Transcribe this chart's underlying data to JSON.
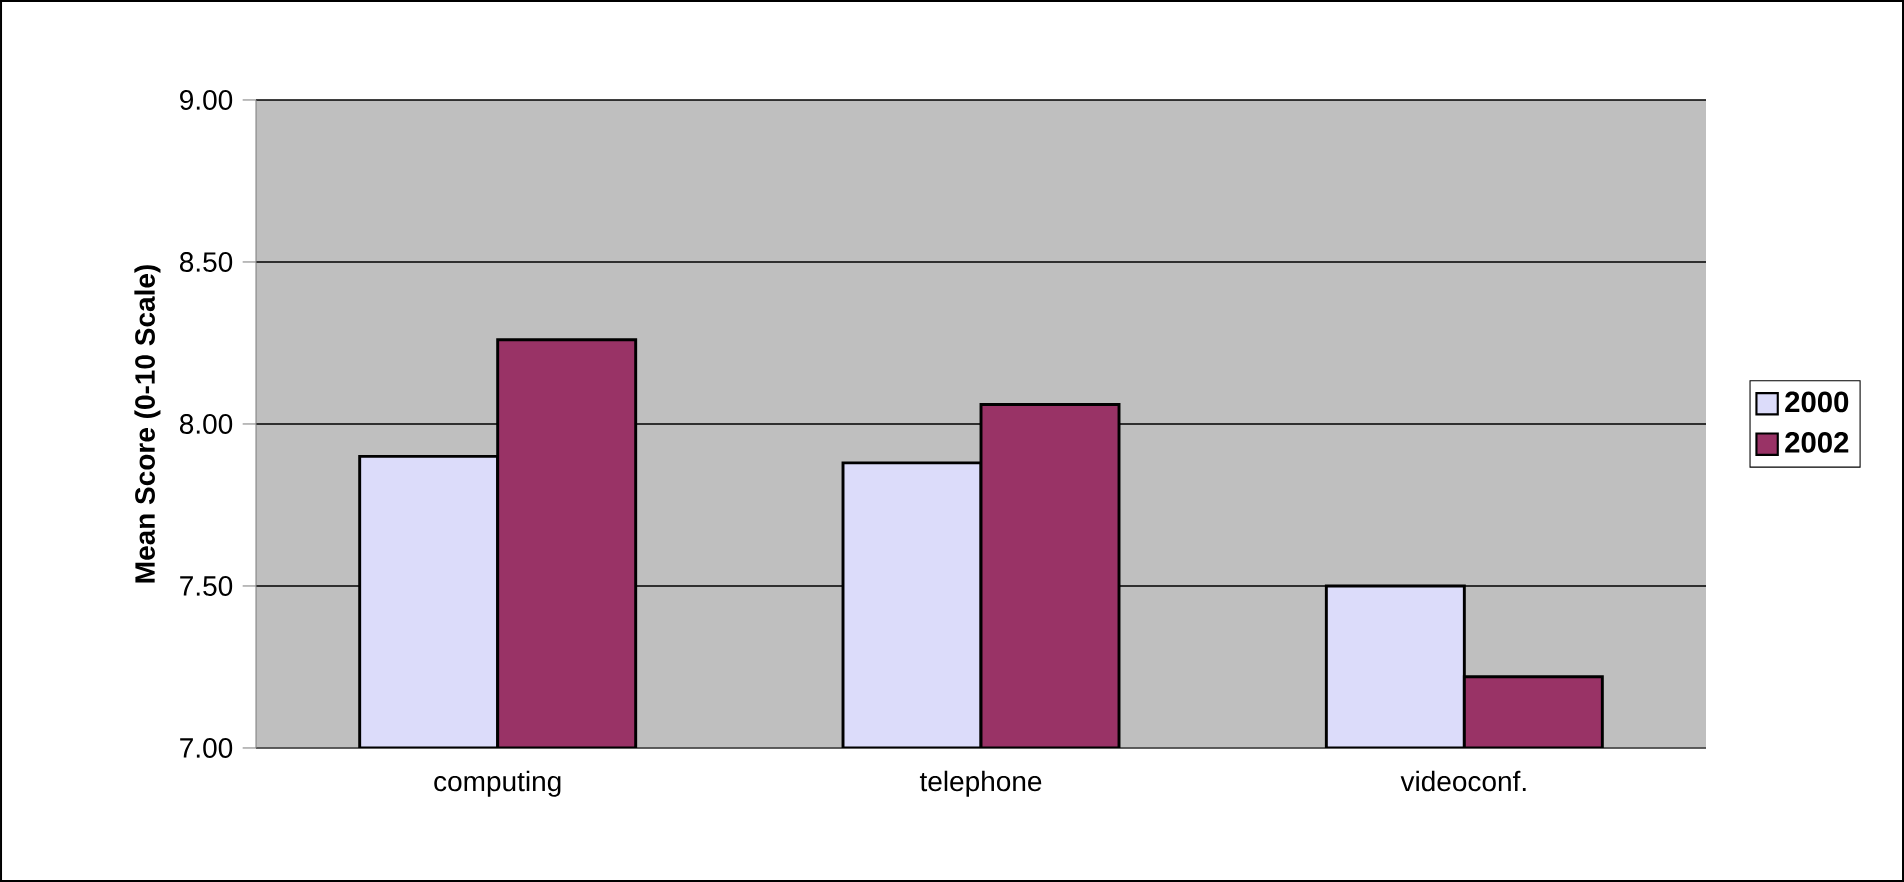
{
  "chart_data": {
    "type": "bar",
    "ylabel": "Mean Score (0-10 Scale)",
    "categories": [
      "computing",
      "telephone",
      "videoconf."
    ],
    "series": [
      {
        "name": "2000",
        "color": "#dcdcfa",
        "values": [
          7.9,
          7.88,
          7.5
        ]
      },
      {
        "name": "2002",
        "color": "#993366",
        "values": [
          8.26,
          8.06,
          7.22
        ]
      }
    ],
    "ylim": [
      7,
      9
    ],
    "yticks": [
      {
        "value": 7,
        "label": "7.00"
      },
      {
        "value": 7.5,
        "label": "7.50"
      },
      {
        "value": 8,
        "label": "8.00"
      },
      {
        "value": 8.5,
        "label": "8.50"
      },
      {
        "value": 9,
        "label": "9.00"
      }
    ],
    "grid": "y",
    "legend": "right"
  }
}
